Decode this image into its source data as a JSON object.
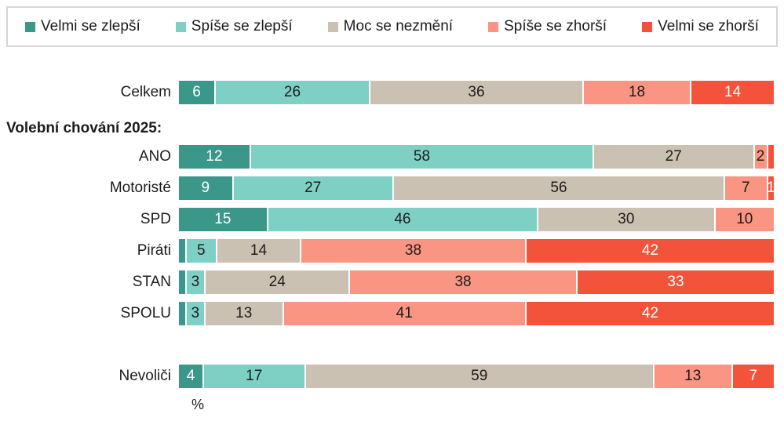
{
  "legend": {
    "items": [
      {
        "label": "Velmi se zlepší",
        "color": "#3C978B"
      },
      {
        "label": "Spíše se zlepší",
        "color": "#7ED0C5"
      },
      {
        "label": "Moc se nezmění",
        "color": "#CBC1B2"
      },
      {
        "label": "Spíše se zhorší",
        "color": "#FA9483"
      },
      {
        "label": "Velmi se zhorší",
        "color": "#F4533B"
      }
    ]
  },
  "chart_data": {
    "type": "bar",
    "stacked": true,
    "orientation": "horizontal",
    "unit_label": "%",
    "xlim": [
      0,
      100
    ],
    "grid": false,
    "legend_position": "top",
    "series_names": [
      "Velmi se zlepší",
      "Spíše se zlepší",
      "Moc se nezmění",
      "Spíše se zhorší",
      "Velmi se zhorší"
    ],
    "series_colors": [
      "#3C978B",
      "#7ED0C5",
      "#CBC1B2",
      "#FA9483",
      "#F4533B"
    ],
    "value_text_colors": [
      "#ffffff",
      "#1c1c1c",
      "#1c1c1c",
      "#1c1c1c",
      "#ffffff"
    ],
    "categories_header": "Volební chování 2025:",
    "rows": [
      {
        "label": "Celkem",
        "values": [
          6,
          26,
          36,
          18,
          14
        ],
        "display": [
          "6",
          "26",
          "36",
          "18",
          "14"
        ]
      },
      {
        "label": "ANO",
        "values": [
          12,
          58,
          27,
          2,
          1
        ],
        "display": [
          "12",
          "58",
          "27",
          "2",
          ""
        ]
      },
      {
        "label": "Motoristé",
        "values": [
          9,
          27,
          56,
          7,
          1
        ],
        "display": [
          "9",
          "27",
          "56",
          "7",
          "1"
        ]
      },
      {
        "label": "SPD",
        "values": [
          15,
          46,
          30,
          10,
          0
        ],
        "display": [
          "15",
          "46",
          "30",
          "10",
          ""
        ]
      },
      {
        "label": "Piráti",
        "values": [
          1,
          5,
          14,
          38,
          42
        ],
        "display": [
          "",
          "5",
          "14",
          "38",
          "42"
        ]
      },
      {
        "label": "STAN",
        "values": [
          1,
          3,
          24,
          38,
          33
        ],
        "display": [
          "",
          "3",
          "24",
          "38",
          "33"
        ]
      },
      {
        "label": "SPOLU",
        "values": [
          1,
          3,
          13,
          41,
          42
        ],
        "display": [
          "",
          "3",
          "13",
          "41",
          "42"
        ]
      },
      {
        "label": "Nevoliči",
        "values": [
          4,
          17,
          59,
          13,
          7
        ],
        "display": [
          "4",
          "17",
          "59",
          "13",
          "7"
        ]
      }
    ],
    "layout": {
      "group_header_after_row_index": 0,
      "extra_spacer_before_row_index": 7
    }
  }
}
